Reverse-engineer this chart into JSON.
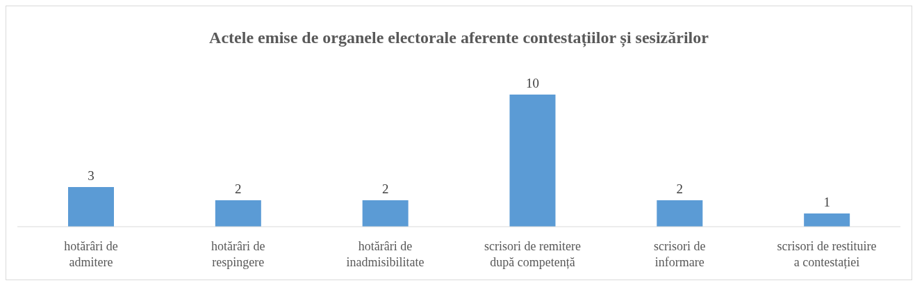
{
  "chart_data": {
    "type": "bar",
    "title": "Actele emise de organele electorale aferente contestațiilor și sesizărilor",
    "categories": [
      "hotărâri de admitere",
      "hotărâri de respingere",
      "hotărâri de inadmisibilitate",
      "scrisori de remitere după competență",
      "scrisori de informare",
      "scrisori de restituire a contestației"
    ],
    "values": [
      3,
      2,
      2,
      10,
      2,
      1
    ],
    "color": "#5b9bd5",
    "data_labels": true,
    "grid": false,
    "legend": false
  }
}
